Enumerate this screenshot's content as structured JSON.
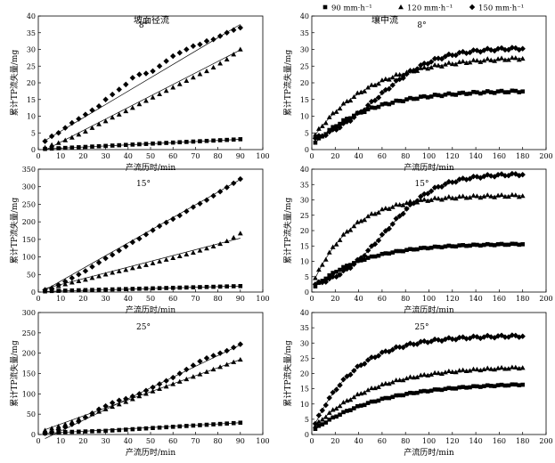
{
  "legend": {
    "entries": [
      {
        "label": "90 mm·h⁻¹",
        "marker": "square"
      },
      {
        "label": "120 mm·h⁻¹",
        "marker": "triangle"
      },
      {
        "label": "150 mm·h⁻¹",
        "marker": "diamond"
      }
    ]
  },
  "column_titles": {
    "left": "坡面径流",
    "right": "壤中流"
  },
  "chart_data": [
    {
      "type": "scatter",
      "title": "8°",
      "xlabel": "产流历时/min",
      "ylabel": "累计TP流失量/mg",
      "xlim": [
        0,
        100
      ],
      "ylim": [
        0,
        40
      ],
      "xticks": [
        0,
        10,
        20,
        30,
        40,
        50,
        60,
        70,
        80,
        90,
        100
      ],
      "yticks": [
        0,
        5,
        10,
        15,
        20,
        25,
        30,
        35,
        40
      ],
      "series": [
        {
          "name": "90 mm·h⁻¹",
          "marker": "square",
          "x": [
            3,
            6,
            9,
            12,
            15,
            18,
            21,
            24,
            27,
            30,
            33,
            36,
            39,
            42,
            45,
            48,
            51,
            54,
            57,
            60,
            63,
            66,
            69,
            72,
            75,
            78,
            81,
            84,
            87,
            90
          ],
          "y": [
            0.2,
            0.3,
            0.4,
            0.5,
            0.6,
            0.7,
            0.8,
            0.9,
            1.0,
            1.1,
            1.2,
            1.3,
            1.4,
            1.5,
            1.6,
            1.7,
            1.8,
            1.9,
            2.0,
            2.1,
            2.2,
            2.3,
            2.4,
            2.5,
            2.6,
            2.7,
            2.8,
            2.9,
            3.0,
            3.1
          ],
          "fit": [
            0.1,
            0.033
          ]
        },
        {
          "name": "120 mm·h⁻¹",
          "marker": "triangle",
          "x": [
            3,
            6,
            9,
            12,
            15,
            18,
            21,
            24,
            27,
            30,
            33,
            36,
            39,
            42,
            45,
            48,
            51,
            54,
            57,
            60,
            63,
            66,
            69,
            72,
            75,
            78,
            81,
            84,
            87,
            90
          ],
          "y": [
            0.6,
            1.4,
            2.0,
            2.8,
            3.6,
            4.5,
            5.4,
            6.5,
            7.6,
            8.5,
            9.6,
            10.5,
            11.5,
            12.5,
            13.6,
            14.6,
            15.6,
            16.6,
            17.6,
            18.6,
            19.6,
            20.6,
            21.6,
            22.6,
            23.5,
            24.6,
            25.8,
            27.0,
            28.5,
            30.0
          ],
          "fit": [
            -1.2,
            0.345
          ]
        },
        {
          "name": "150 mm·h⁻¹",
          "marker": "diamond",
          "x": [
            3,
            6,
            9,
            12,
            15,
            18,
            21,
            24,
            27,
            30,
            33,
            36,
            39,
            42,
            45,
            48,
            51,
            54,
            57,
            60,
            63,
            66,
            69,
            72,
            75,
            78,
            81,
            84,
            87,
            90
          ],
          "y": [
            2.5,
            4.0,
            5.0,
            6.5,
            8.0,
            9.2,
            10.5,
            11.8,
            13.0,
            15.0,
            16.5,
            18.0,
            19.5,
            21.5,
            22.5,
            22.8,
            23.5,
            25.0,
            26.5,
            28.0,
            29.0,
            30.0,
            31.0,
            31.5,
            32.5,
            33.0,
            34.0,
            35.0,
            35.8,
            36.5
          ],
          "fit": [
            1.5,
            0.4
          ]
        }
      ]
    },
    {
      "type": "scatter",
      "title": "8°",
      "xlabel": "产流历时/min",
      "ylabel": "累计TP流失量/mg",
      "xlim": [
        0,
        200
      ],
      "ylim": [
        0,
        40
      ],
      "xticks": [
        0,
        20,
        40,
        60,
        80,
        100,
        120,
        140,
        160,
        180,
        200
      ],
      "yticks": [
        0,
        5,
        10,
        15,
        20,
        25,
        30,
        35,
        40
      ],
      "series": [
        {
          "name": "90 mm·h⁻¹",
          "marker": "square",
          "asymptote": 17.8,
          "k": 0.022,
          "start": 1.0,
          "wiggle": 0.3
        },
        {
          "name": "120 mm·h⁻¹",
          "marker": "triangle",
          "asymptote": 28.0,
          "k": 0.02,
          "start": 3.0,
          "wiggle": 0.4
        },
        {
          "name": "150 mm·h⁻¹",
          "marker": "diamond",
          "asymptote": 30.5,
          "k": 0.04,
          "mid": 55,
          "sigmoid": true,
          "wiggle": 0.4
        }
      ]
    },
    {
      "type": "scatter",
      "title": "15°",
      "xlabel": "产流历时/min",
      "ylabel": "累计TP流失量/mg",
      "xlim": [
        0,
        100
      ],
      "ylim": [
        0,
        350
      ],
      "xticks": [
        0,
        10,
        20,
        30,
        40,
        50,
        60,
        70,
        80,
        90,
        100
      ],
      "yticks": [
        0,
        50,
        100,
        150,
        200,
        250,
        300,
        350
      ],
      "series": [
        {
          "name": "90 mm·h⁻¹",
          "marker": "square",
          "x": [
            3,
            6,
            9,
            12,
            15,
            18,
            21,
            24,
            27,
            30,
            33,
            36,
            39,
            42,
            45,
            48,
            51,
            54,
            57,
            60,
            63,
            66,
            69,
            72,
            75,
            78,
            81,
            84,
            87,
            90
          ],
          "y": [
            2,
            3,
            3.5,
            4,
            4.5,
            5,
            5.5,
            6,
            6.5,
            7,
            7.5,
            8,
            8.5,
            9,
            9.5,
            10,
            10.5,
            11,
            11.5,
            12,
            12.5,
            13,
            13.5,
            14,
            14.5,
            15,
            15.5,
            16,
            16.5,
            17
          ],
          "fit": [
            1.0,
            0.18
          ]
        },
        {
          "name": "120 mm·h⁻¹",
          "marker": "triangle",
          "x": [
            3,
            6,
            9,
            12,
            15,
            18,
            21,
            24,
            27,
            30,
            33,
            36,
            39,
            42,
            45,
            48,
            51,
            54,
            57,
            60,
            63,
            66,
            69,
            72,
            75,
            78,
            81,
            84,
            87,
            90
          ],
          "y": [
            6,
            12,
            17,
            22,
            27,
            31,
            35,
            40,
            45,
            50,
            55,
            59,
            63,
            68,
            72,
            77,
            82,
            87,
            92,
            97,
            102,
            107,
            112,
            118,
            124,
            130,
            137,
            145,
            155,
            167
          ],
          "fit": [
            5.0,
            1.65
          ]
        },
        {
          "name": "150 mm·h⁻¹",
          "marker": "diamond",
          "x": [
            3,
            6,
            9,
            12,
            15,
            18,
            21,
            24,
            27,
            30,
            33,
            36,
            39,
            42,
            45,
            48,
            51,
            54,
            57,
            60,
            63,
            66,
            69,
            72,
            75,
            78,
            81,
            84,
            87,
            90
          ],
          "y": [
            6,
            10,
            20,
            30,
            40,
            50,
            60,
            72,
            84,
            96,
            106,
            118,
            130,
            142,
            152,
            164,
            176,
            188,
            198,
            208,
            218,
            230,
            242,
            252,
            262,
            274,
            286,
            298,
            310,
            322
          ],
          "fit": [
            -5.0,
            3.62
          ]
        }
      ]
    },
    {
      "type": "scatter",
      "title": "15°",
      "xlabel": "产流历时/min",
      "ylabel": "累计TP流失量/mg",
      "xlim": [
        0,
        200
      ],
      "ylim": [
        0,
        40
      ],
      "xticks": [
        0,
        20,
        40,
        60,
        80,
        100,
        120,
        140,
        160,
        180,
        200
      ],
      "yticks": [
        0,
        5,
        10,
        15,
        20,
        25,
        30,
        35,
        40
      ],
      "series": [
        {
          "name": "90 mm·h⁻¹",
          "marker": "square",
          "asymptote": 15.8,
          "k": 0.024,
          "start": 0.8,
          "wiggle": 0.2
        },
        {
          "name": "120 mm·h⁻¹",
          "marker": "triangle",
          "asymptote": 31.5,
          "k": 0.03,
          "start": 2.0,
          "wiggle": 0.4
        },
        {
          "name": "150 mm·h⁻¹",
          "marker": "diamond",
          "asymptote": 38.5,
          "k": 0.045,
          "mid": 62,
          "sigmoid": true,
          "wiggle": 0.4
        }
      ]
    },
    {
      "type": "scatter",
      "title": "25°",
      "xlabel": "产流历时/min",
      "ylabel": "累计TP流失量/mg",
      "xlim": [
        0,
        100
      ],
      "ylim": [
        0,
        300
      ],
      "xticks": [
        0,
        10,
        20,
        30,
        40,
        50,
        60,
        70,
        80,
        90,
        100
      ],
      "yticks": [
        0,
        50,
        100,
        150,
        200,
        250,
        300
      ],
      "series": [
        {
          "name": "90 mm·h⁻¹",
          "marker": "square",
          "x": [
            3,
            6,
            9,
            12,
            15,
            18,
            21,
            24,
            27,
            30,
            33,
            36,
            39,
            42,
            45,
            48,
            51,
            54,
            57,
            60,
            63,
            66,
            69,
            72,
            75,
            78,
            81,
            84,
            87,
            90
          ],
          "y": [
            3,
            4,
            5,
            6,
            6.5,
            7,
            7.5,
            8,
            8.5,
            9,
            10,
            11,
            12,
            13,
            14,
            15,
            16,
            17,
            18,
            19,
            20,
            21,
            22,
            23,
            24,
            25,
            26,
            27,
            28,
            29
          ],
          "fit": [
            2.0,
            0.3
          ]
        },
        {
          "name": "120 mm·h⁻¹",
          "marker": "triangle",
          "x": [
            3,
            6,
            9,
            12,
            15,
            18,
            21,
            24,
            27,
            30,
            33,
            36,
            39,
            42,
            45,
            48,
            51,
            54,
            57,
            60,
            63,
            66,
            69,
            72,
            75,
            78,
            81,
            84,
            87,
            90
          ],
          "y": [
            10,
            15,
            20,
            25,
            31,
            38,
            44,
            50,
            56,
            62,
            68,
            74,
            80,
            87,
            94,
            100,
            106,
            112,
            118,
            124,
            130,
            136,
            142,
            148,
            154,
            160,
            166,
            172,
            178,
            184
          ],
          "fit": [
            6.0,
            1.98
          ]
        },
        {
          "name": "150 mm·h⁻¹",
          "marker": "diamond",
          "x": [
            3,
            6,
            9,
            12,
            15,
            18,
            21,
            24,
            27,
            30,
            33,
            36,
            39,
            42,
            45,
            48,
            51,
            54,
            57,
            60,
            63,
            66,
            69,
            72,
            75,
            78,
            81,
            84,
            87,
            90
          ],
          "y": [
            3,
            6,
            12,
            18,
            25,
            32,
            42,
            52,
            62,
            70,
            78,
            84,
            88,
            94,
            100,
            108,
            116,
            124,
            132,
            140,
            150,
            160,
            170,
            180,
            188,
            194,
            200,
            206,
            214,
            222
          ],
          "fit": [
            -18.0,
            2.65
          ]
        }
      ]
    },
    {
      "type": "scatter",
      "title": "25°",
      "xlabel": "产流历时/min",
      "ylabel": "累计TP流失量/mg",
      "xlim": [
        0,
        200
      ],
      "ylim": [
        0,
        40
      ],
      "xticks": [
        0,
        20,
        40,
        60,
        80,
        100,
        120,
        140,
        160,
        180,
        200
      ],
      "yticks": [
        0,
        5,
        10,
        15,
        20,
        25,
        30,
        35,
        40
      ],
      "series": [
        {
          "name": "90 mm·h⁻¹",
          "marker": "square",
          "asymptote": 17.0,
          "k": 0.018,
          "start": 1.0,
          "wiggle": 0.2
        },
        {
          "name": "120 mm·h⁻¹",
          "marker": "triangle",
          "asymptote": 22.5,
          "k": 0.02,
          "start": 1.5,
          "wiggle": 0.3
        },
        {
          "name": "150 mm·h⁻¹",
          "marker": "diamond",
          "asymptote": 32.5,
          "k": 0.028,
          "start": 1.0,
          "wiggle": 0.4
        }
      ]
    }
  ]
}
